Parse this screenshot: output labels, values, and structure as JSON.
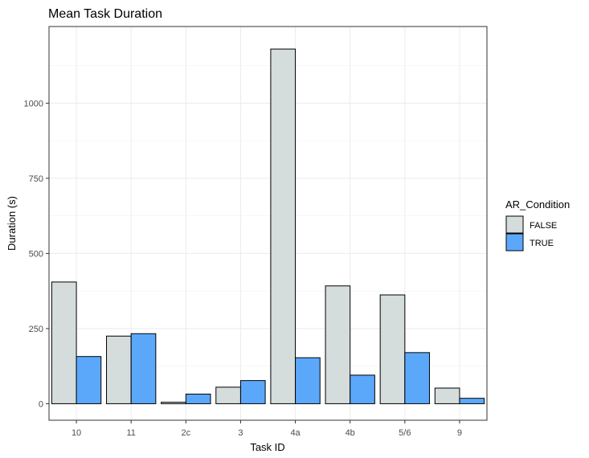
{
  "chart_data": {
    "type": "bar",
    "title": "Mean Task Duration",
    "xlabel": "Task ID",
    "ylabel": "Duration (s)",
    "categories": [
      "10",
      "11",
      "2c",
      "3",
      "4a",
      "4b",
      "5/6",
      "9"
    ],
    "series": [
      {
        "name": "FALSE",
        "color": "#d5dcdc",
        "values": [
          405,
          225,
          5,
          55,
          1180,
          392,
          362,
          52
        ]
      },
      {
        "name": "TRUE",
        "color": "#5ba8fb",
        "values": [
          157,
          233,
          32,
          77,
          153,
          95,
          170,
          18
        ]
      }
    ],
    "ylim": [
      -55,
      1255
    ],
    "yticks": [
      0,
      250,
      500,
      750,
      1000
    ],
    "grid": true,
    "legend": {
      "title": "AR_Condition",
      "position": "right"
    }
  }
}
